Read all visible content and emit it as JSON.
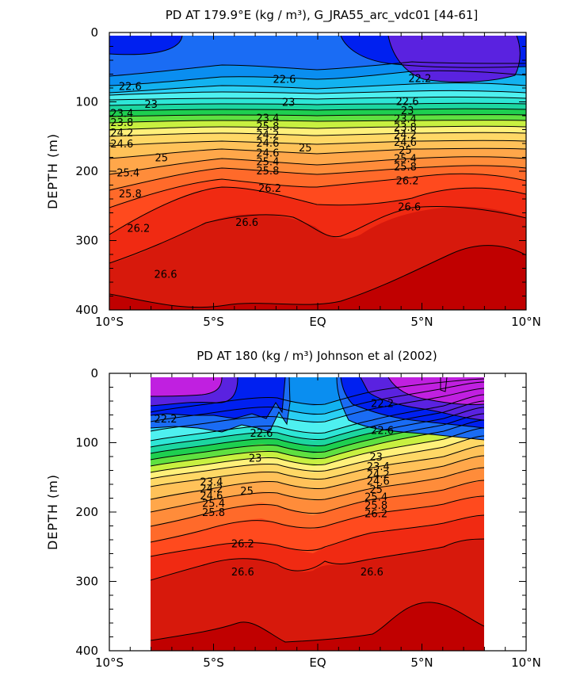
{
  "figure": {
    "panels": [
      {
        "title": "PD AT 179.9°E (kg / m³), G_JRA55_arc_vdc01 [44-61]",
        "ylabel": "DEPTH (m)"
      },
      {
        "title": "PD AT 180 (kg / m³) Johnson et al (2002)",
        "ylabel": "DEPTH (m)"
      }
    ]
  },
  "chart_data": [
    {
      "type": "contour",
      "title": "PD AT 179.9°E (kg / m³), G_JRA55_arc_vdc01 [44-61]",
      "xlabel": "",
      "ylabel": "DEPTH (m)",
      "xlim": [
        -10,
        10
      ],
      "ylim": [
        400,
        0
      ],
      "x_ticks": [
        -10,
        -5,
        0,
        5,
        10
      ],
      "x_tick_labels": [
        "10°S",
        "5°S",
        "EQ",
        "5°N",
        "10°N"
      ],
      "y_ticks": [
        0,
        100,
        200,
        300,
        400
      ],
      "y_tick_labels": [
        "0",
        "100",
        "200",
        "300",
        "400"
      ],
      "data_extent": {
        "x": [
          -10,
          10
        ],
        "depth": [
          5,
          400
        ]
      },
      "contour_levels": [
        22.2,
        22.6,
        23,
        23.4,
        23.8,
        24.2,
        24.6,
        25,
        25.4,
        25.8,
        26.2,
        26.6
      ],
      "contour_labels": [
        {
          "x": -9,
          "depth": 78,
          "label": "22.6"
        },
        {
          "x": -1.6,
          "depth": 68,
          "label": "22.6"
        },
        {
          "x": 4.9,
          "depth": 67,
          "label": "22.2"
        },
        {
          "x": 4.3,
          "depth": 100,
          "label": "22.6"
        },
        {
          "x": -8,
          "depth": 104,
          "label": "23"
        },
        {
          "x": -1.4,
          "depth": 101,
          "label": "23"
        },
        {
          "x": -9.4,
          "depth": 117,
          "label": "23.4"
        },
        {
          "x": -9.4,
          "depth": 130,
          "label": "23.8"
        },
        {
          "x": -9.4,
          "depth": 145,
          "label": "24.2"
        },
        {
          "x": -9.4,
          "depth": 161,
          "label": "24.6"
        },
        {
          "x": -7.5,
          "depth": 181,
          "label": "25"
        },
        {
          "x": -2.4,
          "depth": 124,
          "label": "23.4"
        },
        {
          "x": -2.4,
          "depth": 136,
          "label": "25.8"
        },
        {
          "x": -2.4,
          "depth": 148,
          "label": "24.2"
        },
        {
          "x": -2.4,
          "depth": 160,
          "label": "24.6"
        },
        {
          "x": -0.6,
          "depth": 167,
          "label": "25"
        },
        {
          "x": -2.4,
          "depth": 174,
          "label": "24.6"
        },
        {
          "x": -2.4,
          "depth": 187,
          "label": "25.4"
        },
        {
          "x": -2.4,
          "depth": 200,
          "label": "25.8"
        },
        {
          "x": -2.3,
          "depth": 225,
          "label": "26.2"
        },
        {
          "x": 4.3,
          "depth": 113,
          "label": "23"
        },
        {
          "x": 4.2,
          "depth": 125,
          "label": "23.4"
        },
        {
          "x": 4.2,
          "depth": 137,
          "label": "23.8"
        },
        {
          "x": 4.2,
          "depth": 148,
          "label": "24.2"
        },
        {
          "x": 4.2,
          "depth": 159,
          "label": "24.6"
        },
        {
          "x": 4.2,
          "depth": 170,
          "label": "25"
        },
        {
          "x": 4.2,
          "depth": 182,
          "label": "25.4"
        },
        {
          "x": 4.2,
          "depth": 194,
          "label": "25.8"
        },
        {
          "x": 4.3,
          "depth": 214,
          "label": "26.2"
        },
        {
          "x": 4.4,
          "depth": 252,
          "label": "26.6"
        },
        {
          "x": -9.1,
          "depth": 203,
          "label": "25.4"
        },
        {
          "x": -9.0,
          "depth": 233,
          "label": "25.8"
        },
        {
          "x": -8.6,
          "depth": 283,
          "label": "26.2"
        },
        {
          "x": -3.4,
          "depth": 274,
          "label": "26.6"
        },
        {
          "x": -7.3,
          "depth": 349,
          "label": "26.6"
        }
      ]
    },
    {
      "type": "contour",
      "title": "PD AT 180 (kg / m³) Johnson et al (2002)",
      "xlabel": "",
      "ylabel": "DEPTH (m)",
      "xlim": [
        -10,
        10
      ],
      "ylim": [
        400,
        0
      ],
      "x_ticks": [
        -10,
        -5,
        0,
        5,
        10
      ],
      "x_tick_labels": [
        "10°S",
        "5°S",
        "EQ",
        "5°N",
        "10°N"
      ],
      "y_ticks": [
        0,
        100,
        200,
        300,
        400
      ],
      "y_tick_labels": [
        "0",
        "100",
        "200",
        "300",
        "400"
      ],
      "data_extent": {
        "x": [
          -8,
          8
        ],
        "depth": [
          5,
          400
        ]
      },
      "contour_levels": [
        22.2,
        22.6,
        23,
        23.4,
        23.8,
        24.2,
        24.6,
        25,
        25.4,
        25.8,
        26.2,
        26.6
      ],
      "contour_labels": [
        {
          "x": -7.3,
          "depth": 66,
          "label": "22.2"
        },
        {
          "x": -2.7,
          "depth": 87,
          "label": "22.6"
        },
        {
          "x": 3.1,
          "depth": 44,
          "label": "22.2"
        },
        {
          "x": 3.1,
          "depth": 83,
          "label": "22.6"
        },
        {
          "x": -3.0,
          "depth": 123,
          "label": "23"
        },
        {
          "x": 2.8,
          "depth": 121,
          "label": "23"
        },
        {
          "x": 2.9,
          "depth": 135,
          "label": "23.4"
        },
        {
          "x": 2.9,
          "depth": 146,
          "label": "24.2"
        },
        {
          "x": 2.9,
          "depth": 156,
          "label": "24.6"
        },
        {
          "x": 2.8,
          "depth": 168,
          "label": "25"
        },
        {
          "x": 2.8,
          "depth": 179,
          "label": "25.4"
        },
        {
          "x": 2.8,
          "depth": 191,
          "label": "25.8"
        },
        {
          "x": 2.8,
          "depth": 203,
          "label": "26.2"
        },
        {
          "x": -5.1,
          "depth": 157,
          "label": "23.4"
        },
        {
          "x": -5.1,
          "depth": 167,
          "label": "24.2"
        },
        {
          "x": -5.1,
          "depth": 177,
          "label": "24.6"
        },
        {
          "x": -3.4,
          "depth": 170,
          "label": "25"
        },
        {
          "x": -5.0,
          "depth": 188,
          "label": "25.4"
        },
        {
          "x": -5.0,
          "depth": 201,
          "label": "25.8"
        },
        {
          "x": -3.6,
          "depth": 246,
          "label": "26.2"
        },
        {
          "x": -3.6,
          "depth": 287,
          "label": "26.6"
        },
        {
          "x": 2.6,
          "depth": 287,
          "label": "26.6"
        }
      ]
    }
  ]
}
